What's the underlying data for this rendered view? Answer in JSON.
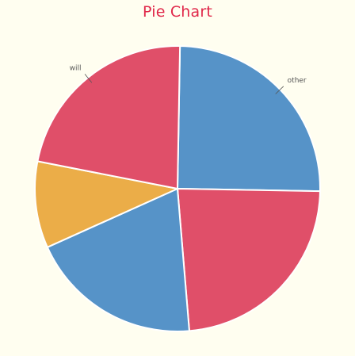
{
  "chart_data": {
    "type": "pie",
    "title": "Pie Chart",
    "slices": [
      {
        "label": "other",
        "value": 25.0,
        "color": "#5693c8"
      },
      {
        "label": "",
        "value": 23.4,
        "color": "#e04f69"
      },
      {
        "label": "",
        "value": 19.6,
        "color": "#5693c8"
      },
      {
        "label": "",
        "value": 9.8,
        "color": "#ebad48"
      },
      {
        "label": "will",
        "value": 22.2,
        "color": "#e04f69"
      }
    ],
    "start_angle_deg": 1,
    "direction": "clockwise",
    "legend": "none"
  }
}
